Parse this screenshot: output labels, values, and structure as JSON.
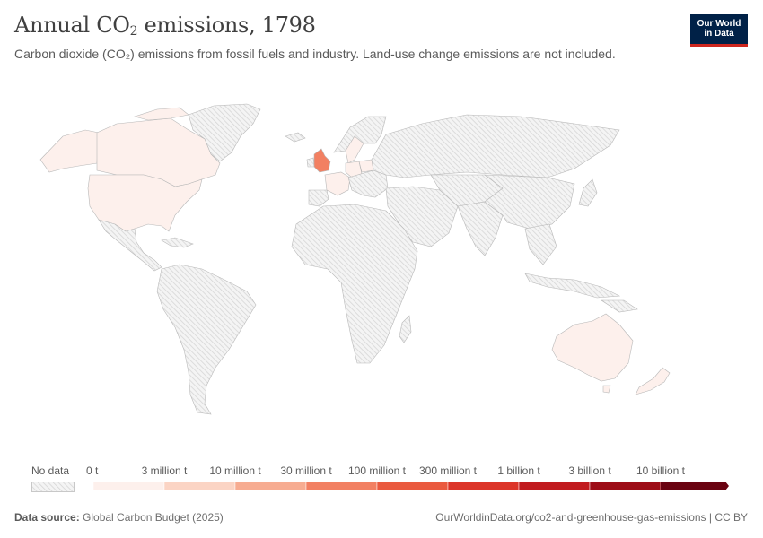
{
  "header": {
    "title_prefix": "Annual CO",
    "title_sub": "2",
    "title_suffix": " emissions, 1798",
    "subtitle": "Carbon dioxide (CO₂) emissions from fossil fuels and industry. Land-use change emissions are not included."
  },
  "logo": {
    "line1": "Our World",
    "line2": "in Data"
  },
  "colors": {
    "no_data": "#efefef",
    "bins": [
      "#fdf0ec",
      "#fbd4c4",
      "#f7ac91",
      "#f28062",
      "#ea5a3f",
      "#dc3529",
      "#c11b1f",
      "#9d0d17",
      "#6a0311"
    ],
    "uk": "#f28062",
    "low": "#fdf0ec",
    "border": "#b8b8b8"
  },
  "legend": {
    "no_data_label": "No data",
    "ticks": [
      "0 t",
      "3 million t",
      "10 million t",
      "30 million t",
      "100 million t",
      "300 million t",
      "1 billion t",
      "3 billion t",
      "10 billion t"
    ]
  },
  "map_data": {
    "year": "1798",
    "countries_with_data": [
      {
        "name": "United Kingdom",
        "bin": 3
      },
      {
        "name": "United States",
        "bin": 0
      },
      {
        "name": "Canada",
        "bin": 0
      },
      {
        "name": "Australia",
        "bin": 0
      },
      {
        "name": "France",
        "bin": 0
      },
      {
        "name": "Germany",
        "bin": 0
      },
      {
        "name": "Poland",
        "bin": 0
      },
      {
        "name": "Sweden",
        "bin": 0
      }
    ]
  },
  "footer": {
    "source_label": "Data source:",
    "source_value": " Global Carbon Budget (2025)",
    "url": "OurWorldinData.org/co2-and-greenhouse-gas-emissions | CC BY"
  }
}
